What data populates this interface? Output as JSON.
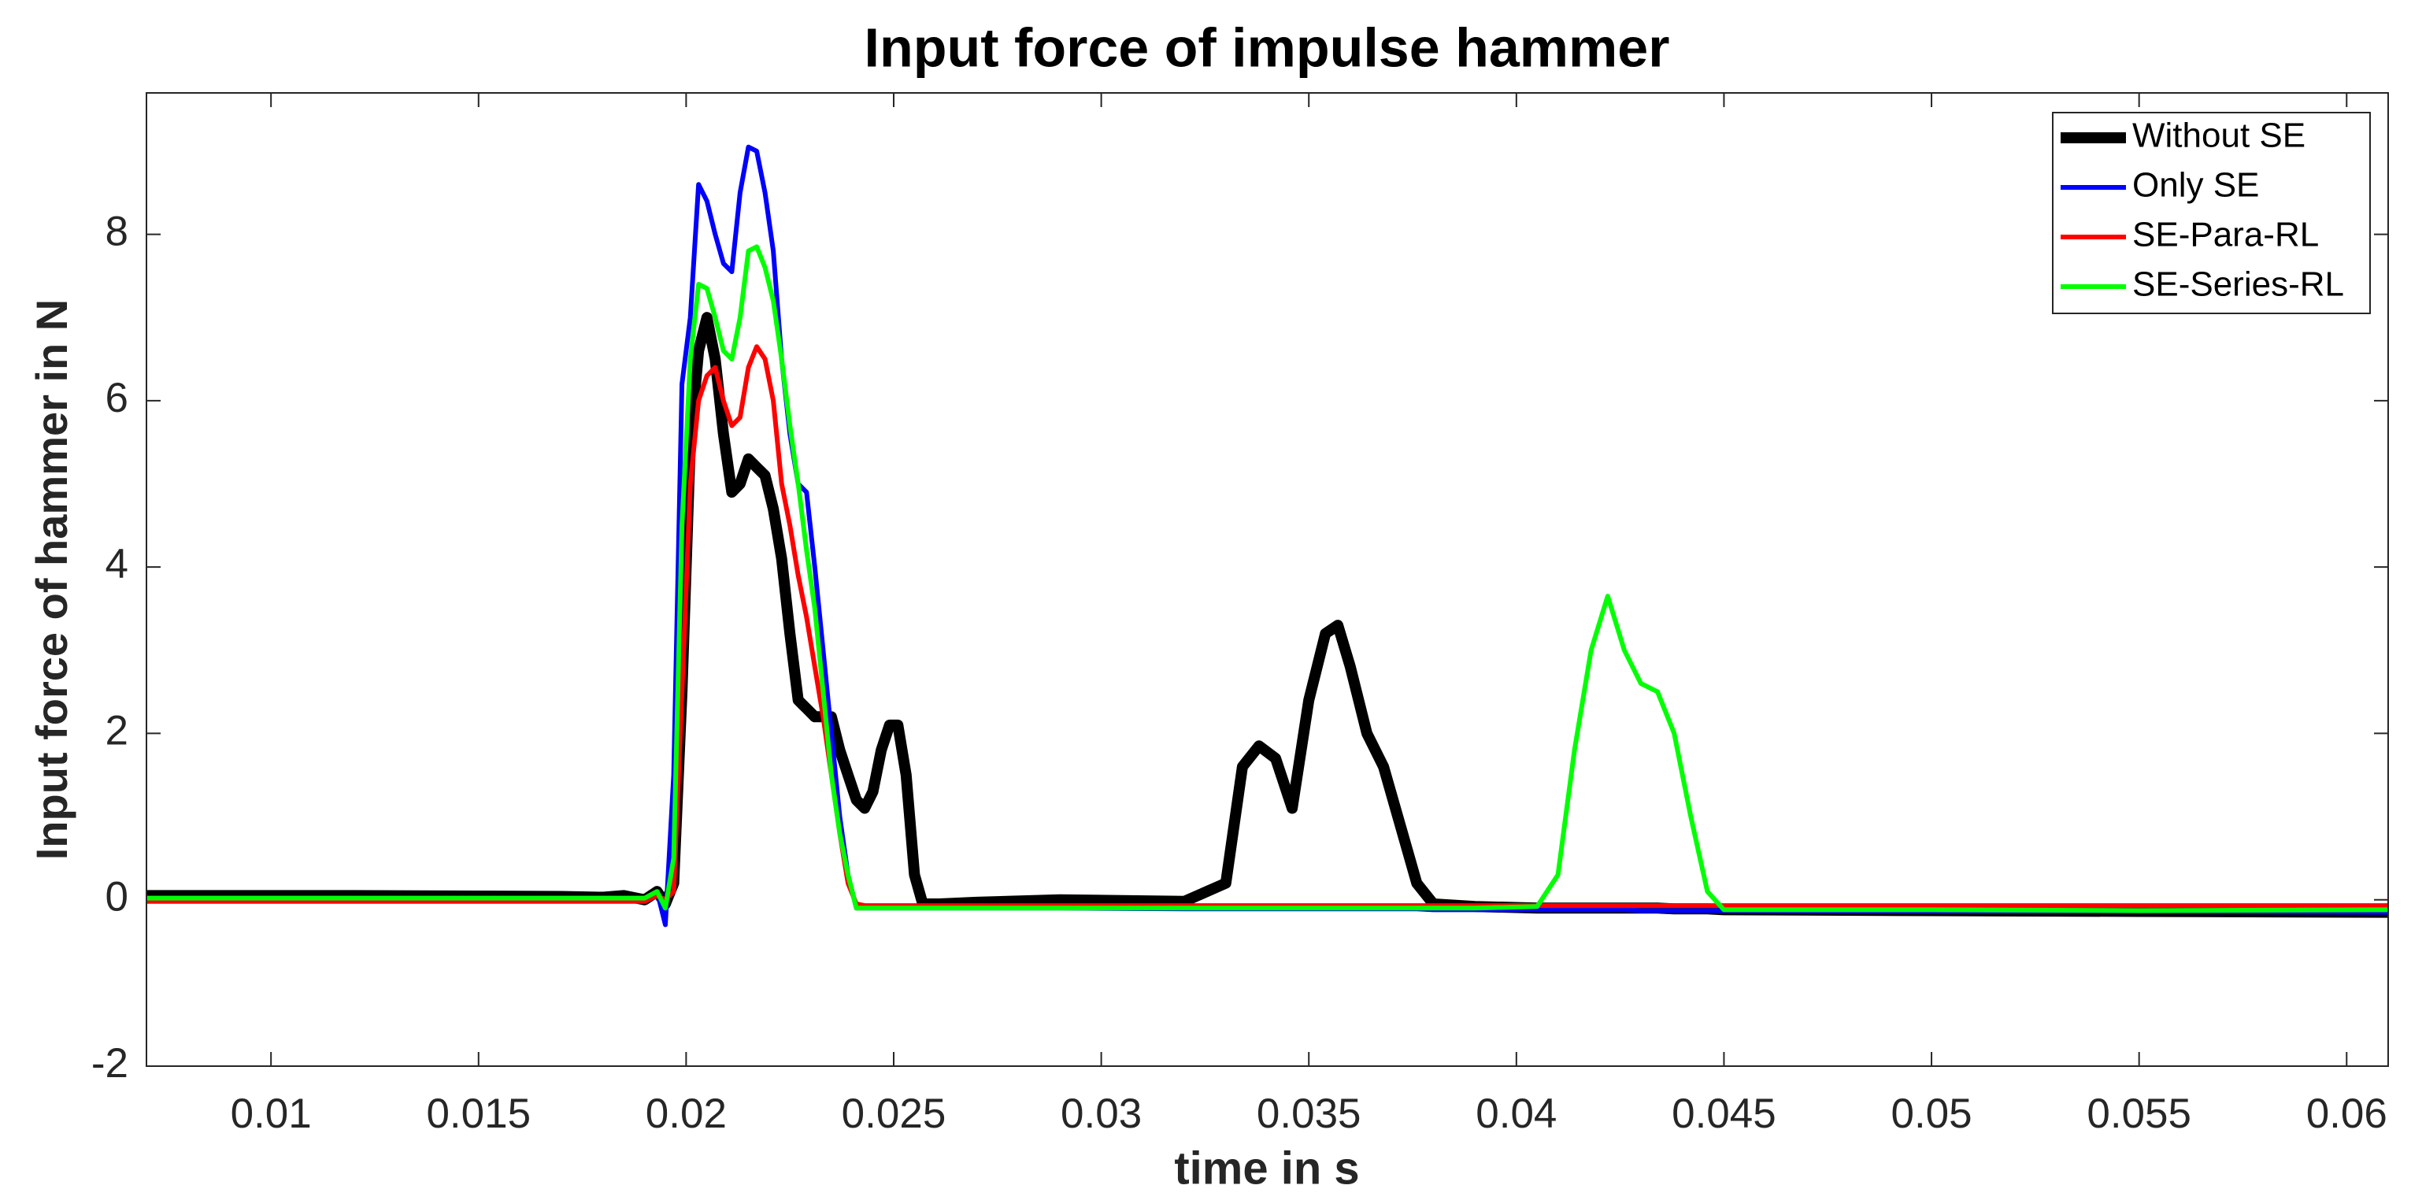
{
  "chart_data": {
    "type": "line",
    "title": "Input force of impulse hammer",
    "x_label": "time in s",
    "y_label": "Input force of hammer in N",
    "xlim": [
      0.007,
      0.061
    ],
    "ylim": [
      -2,
      9.7
    ],
    "xticks": [
      0.01,
      0.015,
      0.02,
      0.025,
      0.03,
      0.035,
      0.04,
      0.045,
      0.05,
      0.055,
      0.06
    ],
    "yticks": [
      -2,
      0,
      2,
      4,
      6,
      8
    ],
    "legend": "upper right",
    "x": [
      0.007,
      0.012,
      0.017,
      0.018,
      0.0185,
      0.019,
      0.0193,
      0.0195,
      0.0197,
      0.0199,
      0.0201,
      0.0203,
      0.0205,
      0.0207,
      0.0209,
      0.0211,
      0.0213,
      0.0215,
      0.0217,
      0.0219,
      0.0221,
      0.0223,
      0.0225,
      0.0227,
      0.0229,
      0.0231,
      0.0233,
      0.0235,
      0.0237,
      0.0239,
      0.0241,
      0.0243,
      0.0245,
      0.0247,
      0.0249,
      0.0251,
      0.0253,
      0.0255,
      0.0257,
      0.0259,
      0.0261,
      0.027,
      0.029,
      0.032,
      0.033,
      0.0334,
      0.0338,
      0.0342,
      0.0346,
      0.035,
      0.0354,
      0.0357,
      0.036,
      0.0364,
      0.0368,
      0.0372,
      0.0376,
      0.038,
      0.039,
      0.0405,
      0.041,
      0.0414,
      0.0418,
      0.0422,
      0.0426,
      0.043,
      0.0434,
      0.0438,
      0.0442,
      0.0446,
      0.045,
      0.05,
      0.055,
      0.061
    ],
    "series": [
      {
        "name": "Without SE",
        "color": "#000000",
        "width": 14,
        "values": [
          0.05,
          0.05,
          0.04,
          0.03,
          0.05,
          0.0,
          0.1,
          -0.05,
          0.2,
          2.5,
          5.5,
          6.6,
          7.0,
          6.5,
          5.6,
          4.9,
          5.0,
          5.3,
          5.2,
          5.1,
          4.7,
          4.1,
          3.2,
          2.4,
          2.3,
          2.2,
          2.2,
          2.2,
          1.8,
          1.5,
          1.2,
          1.1,
          1.3,
          1.8,
          2.1,
          2.1,
          1.5,
          0.3,
          -0.05,
          -0.05,
          -0.05,
          -0.03,
          0.0,
          -0.02,
          0.2,
          1.6,
          1.85,
          1.7,
          1.1,
          2.4,
          3.2,
          3.3,
          2.8,
          2.0,
          1.6,
          0.9,
          0.2,
          -0.05,
          -0.08,
          -0.1,
          -0.1,
          -0.1,
          -0.1,
          -0.1,
          -0.1,
          -0.1,
          -0.1,
          -0.11,
          -0.11,
          -0.11,
          -0.12,
          -0.13,
          -0.14,
          -0.15
        ]
      },
      {
        "name": "Only SE",
        "color": "#0000ff",
        "width": 6,
        "values": [
          0.02,
          0.02,
          0.02,
          0.02,
          0.02,
          0.02,
          0.1,
          -0.3,
          1.5,
          6.2,
          7.0,
          8.6,
          8.4,
          8.0,
          7.65,
          7.55,
          8.5,
          9.05,
          9.0,
          8.5,
          7.8,
          6.5,
          5.6,
          5.0,
          4.9,
          4.0,
          3.0,
          2.0,
          1.0,
          0.3,
          -0.1,
          -0.1,
          -0.1,
          -0.1,
          -0.1,
          -0.1,
          -0.1,
          -0.1,
          -0.1,
          -0.1,
          -0.1,
          -0.1,
          -0.1,
          -0.11,
          -0.11,
          -0.11,
          -0.11,
          -0.11,
          -0.11,
          -0.11,
          -0.11,
          -0.11,
          -0.11,
          -0.11,
          -0.11,
          -0.11,
          -0.11,
          -0.12,
          -0.12,
          -0.12,
          -0.12,
          -0.12,
          -0.12,
          -0.12,
          -0.12,
          -0.13,
          -0.13,
          -0.13,
          -0.13,
          -0.13,
          -0.13,
          -0.14,
          -0.14,
          -0.15
        ]
      },
      {
        "name": "SE-Para-RL",
        "color": "#ff0000",
        "width": 6,
        "values": [
          -0.02,
          -0.02,
          -0.02,
          -0.02,
          -0.02,
          -0.02,
          0.05,
          0.0,
          0.1,
          2.5,
          5.0,
          6.0,
          6.3,
          6.4,
          6.0,
          5.7,
          5.8,
          6.4,
          6.65,
          6.5,
          6.0,
          5.0,
          4.5,
          3.9,
          3.4,
          2.8,
          2.2,
          1.5,
          0.8,
          0.2,
          -0.05,
          -0.07,
          -0.07,
          -0.07,
          -0.07,
          -0.07,
          -0.07,
          -0.07,
          -0.07,
          -0.07,
          -0.07,
          -0.07,
          -0.07,
          -0.07,
          -0.07,
          -0.07,
          -0.07,
          -0.07,
          -0.07,
          -0.07,
          -0.07,
          -0.07,
          -0.07,
          -0.07,
          -0.07,
          -0.07,
          -0.07,
          -0.07,
          -0.07,
          -0.07,
          -0.07,
          -0.07,
          -0.07,
          -0.07,
          -0.07,
          -0.07,
          -0.07,
          -0.07,
          -0.07,
          -0.07,
          -0.07,
          -0.07,
          -0.07,
          -0.07
        ]
      },
      {
        "name": "SE-Series-RL",
        "color": "#00ff00",
        "width": 6,
        "values": [
          0.02,
          0.02,
          0.02,
          0.02,
          0.02,
          0.02,
          0.1,
          -0.1,
          0.5,
          4.5,
          6.5,
          7.4,
          7.35,
          7.0,
          6.6,
          6.5,
          7.0,
          7.8,
          7.85,
          7.6,
          7.2,
          6.5,
          5.7,
          5.0,
          4.2,
          3.5,
          2.5,
          1.5,
          0.8,
          0.3,
          -0.1,
          -0.1,
          -0.1,
          -0.1,
          -0.1,
          -0.1,
          -0.1,
          -0.1,
          -0.1,
          -0.1,
          -0.1,
          -0.1,
          -0.1,
          -0.1,
          -0.1,
          -0.1,
          -0.1,
          -0.1,
          -0.1,
          -0.1,
          -0.1,
          -0.1,
          -0.1,
          -0.1,
          -0.1,
          -0.1,
          -0.1,
          -0.1,
          -0.1,
          -0.08,
          0.3,
          1.8,
          3.0,
          3.65,
          3.0,
          2.6,
          2.5,
          2.0,
          1.0,
          0.1,
          -0.12,
          -0.12,
          -0.13,
          -0.12
        ]
      }
    ]
  }
}
